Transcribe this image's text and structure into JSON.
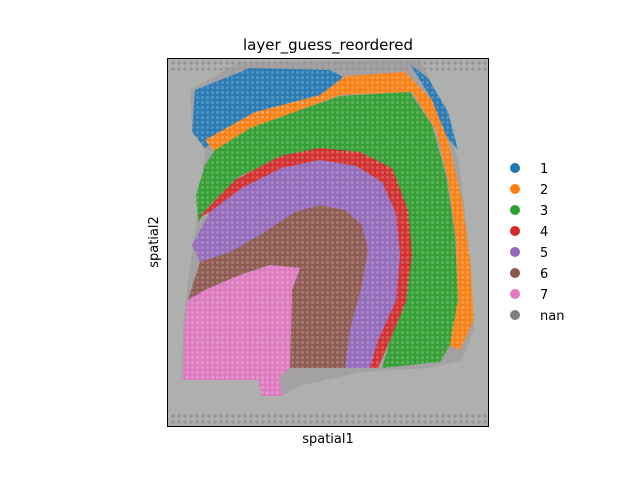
{
  "chart_data": {
    "type": "scatter",
    "title": "layer_guess_reordered",
    "xlabel": "spatial1",
    "ylabel": "spatial2",
    "ticks": "none",
    "grid": false,
    "legend_placement": "right",
    "categories": [
      {
        "name": "1",
        "color": "#1f77b4"
      },
      {
        "name": "2",
        "color": "#ff7f0e"
      },
      {
        "name": "3",
        "color": "#2ca02c"
      },
      {
        "name": "4",
        "color": "#d62728"
      },
      {
        "name": "5",
        "color": "#9467bd"
      },
      {
        "name": "6",
        "color": "#8c564b"
      },
      {
        "name": "7",
        "color": "#e377c2"
      },
      {
        "name": "nan",
        "color": "#7f7f7f"
      }
    ],
    "background_image": "gray tissue section (H&E) behind spots"
  }
}
